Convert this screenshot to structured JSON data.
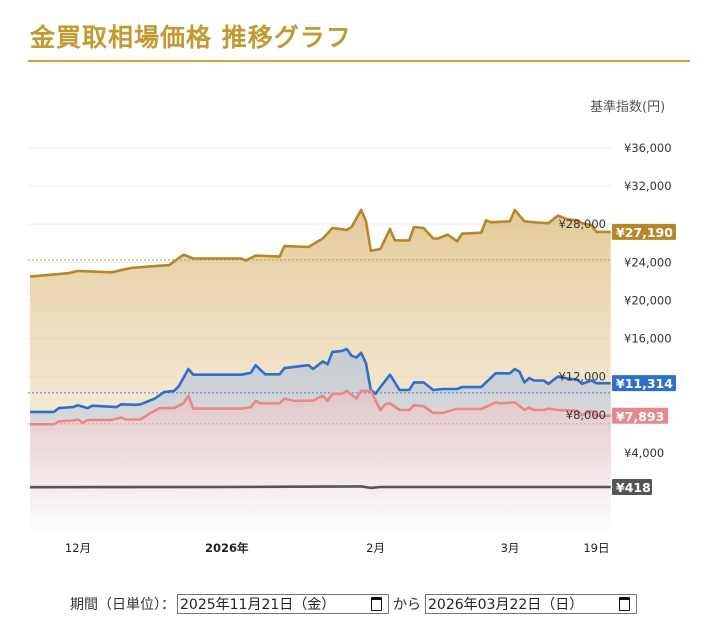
{
  "title": "金買取相場価格 推移グラフ",
  "period": {
    "label": "期間（日単位）：",
    "from": "2025年11月21日（金）",
    "connector": "から",
    "to": "2026年03月22日（日）",
    "icon": "calendar-icon"
  },
  "chart_data": {
    "type": "area",
    "ylabel": "基準指数(円)",
    "ylim": [
      -4000,
      37000
    ],
    "xlim": [
      "2025-11-21",
      "2026-03-22"
    ],
    "grid": true,
    "y_ticks": [
      4000,
      8000,
      12000,
      16000,
      20000,
      24000,
      28000,
      32000,
      36000
    ],
    "y_tick_labels": [
      "¥4,000",
      "¥8,000",
      "¥12,000",
      "¥16,000",
      "¥20,000",
      "¥24,000",
      "¥28,000",
      "¥32,000",
      "¥36,000"
    ],
    "x_ticks": [
      {
        "date": "2025-12-01",
        "label": "12月",
        "bold": false
      },
      {
        "date": "2026-01-01",
        "label": "2026年",
        "bold": true
      },
      {
        "date": "2026-02-01",
        "label": "2月",
        "bold": false
      },
      {
        "date": "2026-03-01",
        "label": "3月",
        "bold": false
      },
      {
        "date": "2026-03-19",
        "label": "19日",
        "bold": false
      }
    ],
    "series": [
      {
        "color": "#b8862a",
        "fill": "#e2c48f",
        "last_label": "¥27,190",
        "reference": 24250,
        "points": [
          [
            "2025-11-21",
            22500
          ],
          [
            "2025-11-29",
            22850
          ],
          [
            "2025-12-01",
            23100
          ],
          [
            "2025-12-08",
            22950
          ],
          [
            "2025-12-12",
            23400
          ],
          [
            "2025-12-17",
            23600
          ],
          [
            "2025-12-20",
            23700
          ],
          [
            "2025-12-23",
            24800
          ],
          [
            "2025-12-25",
            24400
          ],
          [
            "2026-01-04",
            24400
          ],
          [
            "2026-01-05",
            24200
          ],
          [
            "2026-01-07",
            24700
          ],
          [
            "2026-01-12",
            24600
          ],
          [
            "2026-01-13",
            25700
          ],
          [
            "2026-01-18",
            25600
          ],
          [
            "2026-01-21",
            26500
          ],
          [
            "2026-01-23",
            27600
          ],
          [
            "2026-01-26",
            27400
          ],
          [
            "2026-01-27",
            27700
          ],
          [
            "2026-01-29",
            29500
          ],
          [
            "2026-01-30",
            28300
          ],
          [
            "2026-01-31",
            25200
          ],
          [
            "2026-02-02",
            25400
          ],
          [
            "2026-02-04",
            27500
          ],
          [
            "2026-02-05",
            26300
          ],
          [
            "2026-02-08",
            26300
          ],
          [
            "2026-02-09",
            27700
          ],
          [
            "2026-02-11",
            27600
          ],
          [
            "2026-02-13",
            26500
          ],
          [
            "2026-02-14",
            26500
          ],
          [
            "2026-02-16",
            26900
          ],
          [
            "2026-02-18",
            26200
          ],
          [
            "2026-02-19",
            27000
          ],
          [
            "2026-02-23",
            27100
          ],
          [
            "2026-02-24",
            28400
          ],
          [
            "2026-02-25",
            28200
          ],
          [
            "2026-03-01",
            28300
          ],
          [
            "2026-03-02",
            29500
          ],
          [
            "2026-03-04",
            28300
          ],
          [
            "2026-03-06",
            28200
          ],
          [
            "2026-03-09",
            28100
          ],
          [
            "2026-03-11",
            28900
          ],
          [
            "2026-03-13",
            28500
          ],
          [
            "2026-03-15",
            28400
          ],
          [
            "2026-03-16",
            28100
          ],
          [
            "2026-03-18",
            27900
          ],
          [
            "2026-03-19",
            27190
          ],
          [
            "2026-03-22",
            27190
          ]
        ]
      },
      {
        "color": "#2f6fcc",
        "fill": "#c7ced6",
        "last_label": "¥11,314",
        "reference": 10300,
        "points": [
          [
            "2025-11-21",
            8300
          ],
          [
            "2025-11-26",
            8300
          ],
          [
            "2025-11-27",
            8700
          ],
          [
            "2025-11-30",
            8800
          ],
          [
            "2025-12-01",
            9000
          ],
          [
            "2025-12-03",
            8700
          ],
          [
            "2025-12-04",
            8950
          ],
          [
            "2025-12-09",
            8800
          ],
          [
            "2025-12-10",
            9100
          ],
          [
            "2025-12-13",
            9050
          ],
          [
            "2025-12-14",
            9100
          ],
          [
            "2025-12-17",
            9700
          ],
          [
            "2025-12-19",
            10400
          ],
          [
            "2025-12-21",
            10500
          ],
          [
            "2025-12-22",
            11000
          ],
          [
            "2025-12-24",
            12800
          ],
          [
            "2025-12-25",
            12200
          ],
          [
            "2026-01-04",
            12200
          ],
          [
            "2026-01-06",
            12400
          ],
          [
            "2026-01-07",
            13200
          ],
          [
            "2026-01-09",
            12250
          ],
          [
            "2026-01-12",
            12250
          ],
          [
            "2026-01-13",
            12900
          ],
          [
            "2026-01-18",
            13200
          ],
          [
            "2026-01-19",
            12800
          ],
          [
            "2026-01-21",
            13600
          ],
          [
            "2026-01-22",
            13300
          ],
          [
            "2026-01-23",
            14600
          ],
          [
            "2026-01-25",
            14700
          ],
          [
            "2026-01-26",
            14900
          ],
          [
            "2026-01-27",
            14200
          ],
          [
            "2026-01-28",
            14000
          ],
          [
            "2026-01-29",
            14500
          ],
          [
            "2026-01-30",
            13400
          ],
          [
            "2026-01-31",
            10600
          ],
          [
            "2026-02-01",
            10200
          ],
          [
            "2026-02-02",
            10900
          ],
          [
            "2026-02-04",
            12200
          ],
          [
            "2026-02-06",
            10600
          ],
          [
            "2026-02-08",
            10600
          ],
          [
            "2026-02-09",
            11400
          ],
          [
            "2026-02-11",
            11400
          ],
          [
            "2026-02-13",
            10600
          ],
          [
            "2026-02-15",
            10700
          ],
          [
            "2026-02-18",
            10700
          ],
          [
            "2026-02-19",
            10900
          ],
          [
            "2026-02-23",
            10900
          ],
          [
            "2026-02-26",
            12350
          ],
          [
            "2026-03-01",
            12350
          ],
          [
            "2026-03-02",
            12800
          ],
          [
            "2026-03-03",
            12500
          ],
          [
            "2026-03-04",
            11400
          ],
          [
            "2026-03-05",
            11850
          ],
          [
            "2026-03-06",
            11600
          ],
          [
            "2026-03-08",
            11600
          ],
          [
            "2026-03-09",
            11250
          ],
          [
            "2026-03-11",
            12000
          ],
          [
            "2026-03-13",
            11800
          ],
          [
            "2026-03-15",
            11700
          ],
          [
            "2026-03-16",
            11250
          ],
          [
            "2026-03-18",
            11600
          ],
          [
            "2026-03-19",
            11314
          ],
          [
            "2026-03-22",
            11314
          ]
        ]
      },
      {
        "color": "#e8888c",
        "fill": "#e6cbcd",
        "last_label": "¥7,893",
        "reference": 7050,
        "points": [
          [
            "2025-11-21",
            7000
          ],
          [
            "2025-11-26",
            7000
          ],
          [
            "2025-11-27",
            7300
          ],
          [
            "2025-11-30",
            7400
          ],
          [
            "2025-12-01",
            7500
          ],
          [
            "2025-12-02",
            7150
          ],
          [
            "2025-12-03",
            7450
          ],
          [
            "2025-12-08",
            7450
          ],
          [
            "2025-12-10",
            7700
          ],
          [
            "2025-12-11",
            7500
          ],
          [
            "2025-12-14",
            7500
          ],
          [
            "2025-12-16",
            8150
          ],
          [
            "2025-12-18",
            8700
          ],
          [
            "2025-12-21",
            8700
          ],
          [
            "2025-12-23",
            9200
          ],
          [
            "2025-12-24",
            10000
          ],
          [
            "2025-12-25",
            8650
          ],
          [
            "2026-01-04",
            8650
          ],
          [
            "2026-01-06",
            8800
          ],
          [
            "2026-01-07",
            9450
          ],
          [
            "2026-01-08",
            9200
          ],
          [
            "2026-01-12",
            9200
          ],
          [
            "2026-01-13",
            9700
          ],
          [
            "2026-01-15",
            9450
          ],
          [
            "2026-01-19",
            9500
          ],
          [
            "2026-01-21",
            10000
          ],
          [
            "2026-01-22",
            9450
          ],
          [
            "2026-01-23",
            10200
          ],
          [
            "2026-01-25",
            10200
          ],
          [
            "2026-01-26",
            10500
          ],
          [
            "2026-01-28",
            9700
          ],
          [
            "2026-01-29",
            10500
          ],
          [
            "2026-01-31",
            10500
          ],
          [
            "2026-02-02",
            8500
          ],
          [
            "2026-02-03",
            9100
          ],
          [
            "2026-02-04",
            9200
          ],
          [
            "2026-02-06",
            8500
          ],
          [
            "2026-02-08",
            8500
          ],
          [
            "2026-02-09",
            9000
          ],
          [
            "2026-02-11",
            8900
          ],
          [
            "2026-02-13",
            8200
          ],
          [
            "2026-02-15",
            8200
          ],
          [
            "2026-02-17",
            8500
          ],
          [
            "2026-02-18",
            8600
          ],
          [
            "2026-02-23",
            8600
          ],
          [
            "2026-02-26",
            9300
          ],
          [
            "2026-02-27",
            9200
          ],
          [
            "2026-03-02",
            9300
          ],
          [
            "2026-03-04",
            8500
          ],
          [
            "2026-03-05",
            8750
          ],
          [
            "2026-03-06",
            8500
          ],
          [
            "2026-03-08",
            8500
          ],
          [
            "2026-03-09",
            8650
          ],
          [
            "2026-03-11",
            8500
          ],
          [
            "2026-03-15",
            8400
          ],
          [
            "2026-03-16",
            7950
          ],
          [
            "2026-03-18",
            8400
          ],
          [
            "2026-03-19",
            7893
          ],
          [
            "2026-03-22",
            7893
          ]
        ]
      },
      {
        "color": "#555555",
        "fill": "#eeeeee",
        "last_label": "¥418",
        "points": [
          [
            "2025-11-21",
            400
          ],
          [
            "2025-12-31",
            420
          ],
          [
            "2026-01-15",
            450
          ],
          [
            "2026-01-29",
            480
          ],
          [
            "2026-01-31",
            330
          ],
          [
            "2026-02-02",
            420
          ],
          [
            "2026-03-22",
            418
          ]
        ]
      }
    ]
  }
}
